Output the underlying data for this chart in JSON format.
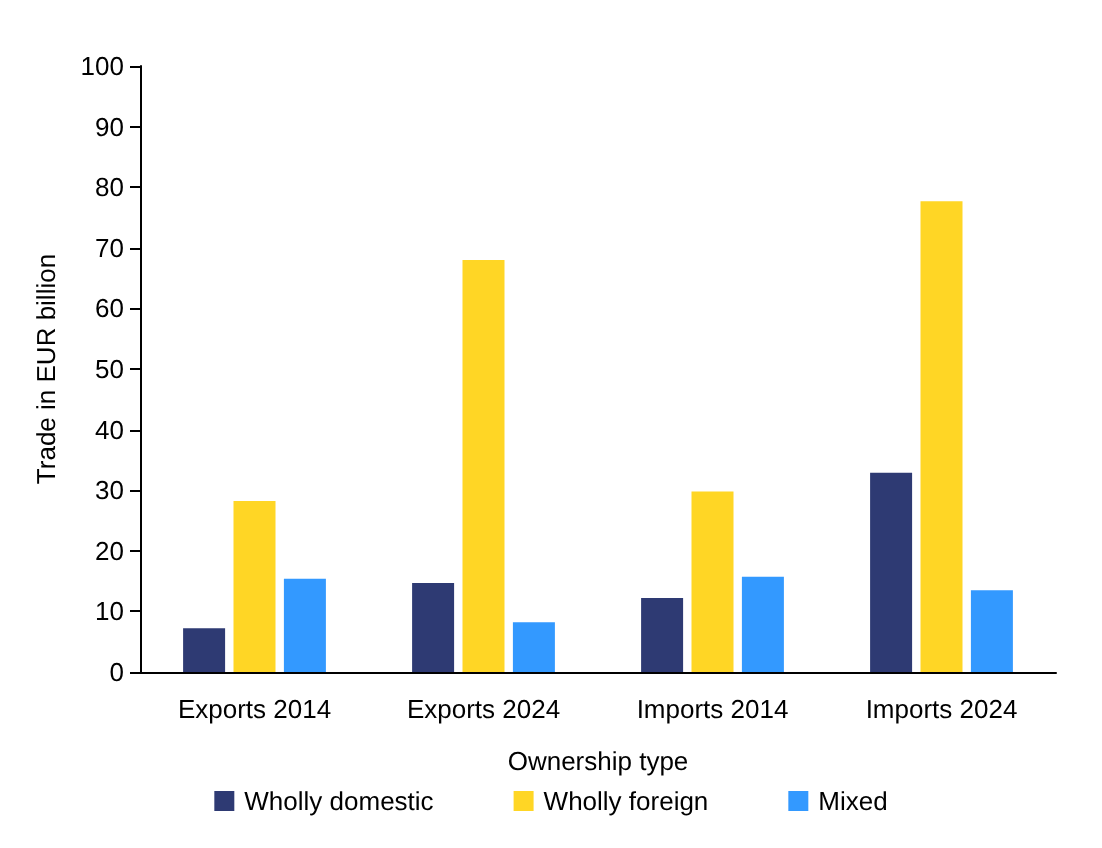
{
  "chart_data": {
    "type": "bar",
    "xlabel": "Ownership type",
    "ylabel": "Trade in EUR billion",
    "categories": [
      "Exports 2014",
      "Exports 2024",
      "Imports 2014",
      "Imports 2024"
    ],
    "series": [
      {
        "name": "Wholly domestic",
        "color": "#2e3a73",
        "values": [
          7.2,
          14.7,
          12.2,
          32.9
        ]
      },
      {
        "name": "Wholly foreign",
        "color": "#ffd625",
        "values": [
          28.2,
          68,
          29.8,
          77.7
        ]
      },
      {
        "name": "Mixed",
        "color": "#3399ff",
        "values": [
          15.4,
          8.2,
          15.7,
          13.5
        ]
      }
    ],
    "ylim": [
      0,
      100
    ],
    "yticks": [
      0,
      10,
      20,
      30,
      40,
      50,
      60,
      70,
      80,
      90,
      100
    ],
    "grid": false,
    "legend": "bottom"
  }
}
